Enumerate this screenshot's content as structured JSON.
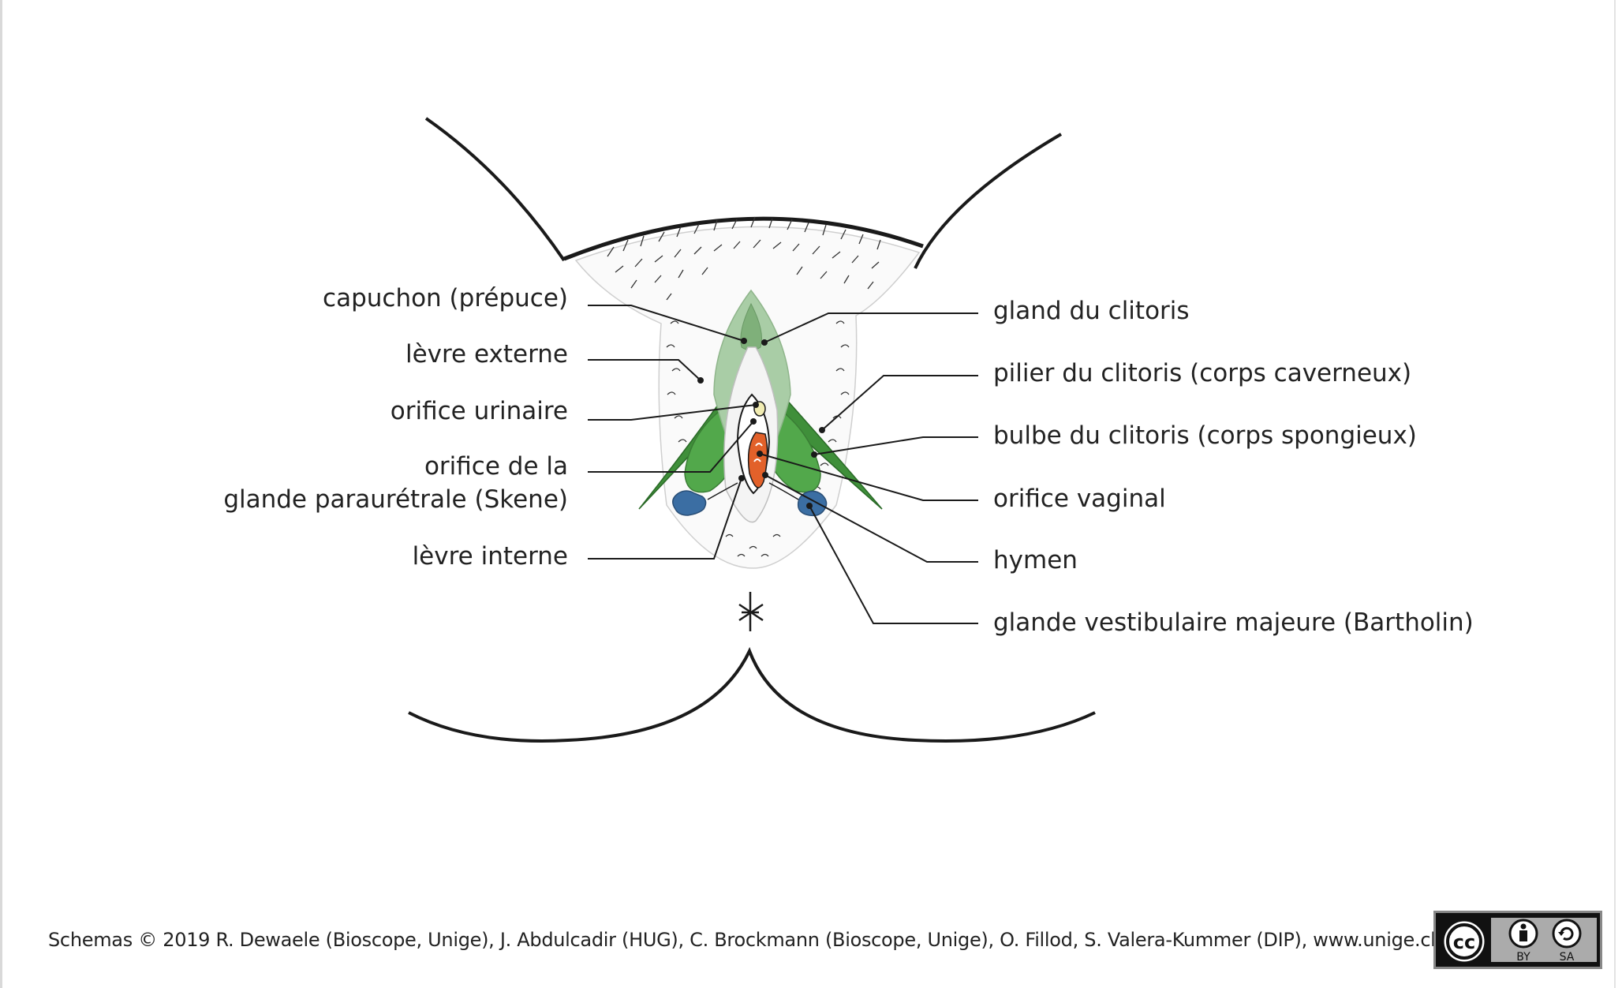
{
  "labels": {
    "hood": "capuchon (prépuce)",
    "outer_lip": "lèvre externe",
    "urinary_orifice": "orifice urinaire",
    "skene_line1": "orifice de la",
    "skene_line2": "glande paraurétrale (Skene)",
    "inner_lip": "lèvre interne",
    "glans": "gland du clitoris",
    "crus": "pilier du clitoris (corps caverneux)",
    "bulb": "bulbe du clitoris (corps spongieux)",
    "vaginal_orifice": "orifice vaginal",
    "hymen": "hymen",
    "bartholin": "glande vestibulaire majeure (Bartholin)"
  },
  "credits": "Schemas © 2019 R. Dewaele (Bioscope, Unige), J. Abdulcadir (HUG), C. Brockmann (Bioscope, Unige), O. Fillod, S. Valera-Kummer (DIP), www.unige.ch/ssi",
  "license_badge": {
    "symbols": [
      "cc-icon",
      "by-icon",
      "sa-icon"
    ],
    "by_text": "BY",
    "sa_text": "SA"
  },
  "colors": {
    "dark_green": "#3f8f3a",
    "mid_green": "#52a84b",
    "light_green": "#a9cda6",
    "blue": "#3b6ea3",
    "orange": "#e2612a",
    "yellow": "#f1ecb2",
    "line": "#1a1a1a"
  }
}
